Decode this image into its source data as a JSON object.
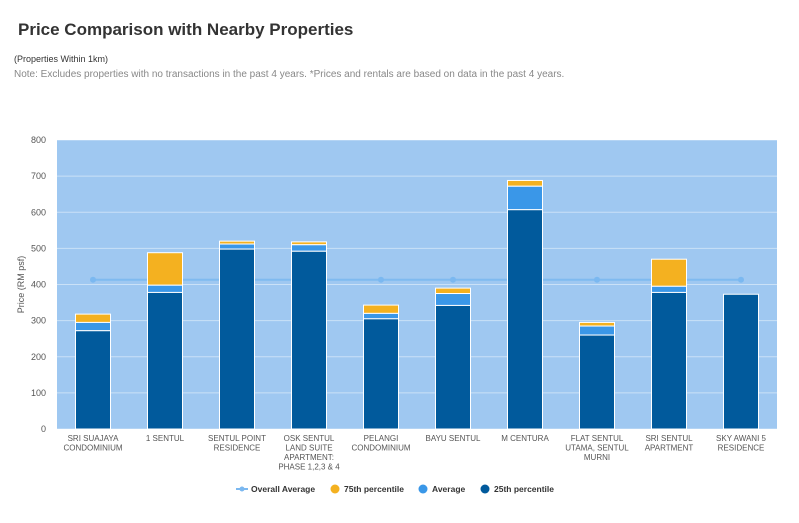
{
  "title": "Price Comparison with Nearby Properties",
  "subtitle": "(Properties Within 1km)",
  "note": "Note: Excludes properties with no transactions in the past 4 years. *Prices and rentals are based on data in the past 4 years.",
  "colors": {
    "plot_bg": "#9fc8f1",
    "p75": "#f4b120",
    "average": "#3a97e8",
    "p25": "#015a9c",
    "overall": "#7bb8f0"
  },
  "chart_data": {
    "type": "bar",
    "ylabel": "Price (RM psf)",
    "ylim": [
      0,
      800
    ],
    "yticks": [
      0,
      100,
      200,
      300,
      400,
      500,
      600,
      700,
      800
    ],
    "grid": true,
    "legend_position": "bottom",
    "categories": [
      [
        "SRI SUAJAYA",
        "CONDOMINIUM"
      ],
      [
        "1 SENTUL"
      ],
      [
        "SENTUL POINT",
        "RESIDENCE"
      ],
      [
        "OSK SENTUL",
        "LAND SUITE",
        "APARTMENT:",
        "PHASE 1,2,3 & 4"
      ],
      [
        "PELANGI",
        "CONDOMINIUM"
      ],
      [
        "BAYU SENTUL"
      ],
      [
        "M CENTURA"
      ],
      [
        "FLAT SENTUL",
        "UTAMA, SENTUL",
        "MURNI"
      ],
      [
        "SRI SENTUL",
        "APARTMENT"
      ],
      [
        "SKY AWANI 5",
        "RESIDENCE"
      ]
    ],
    "series": [
      {
        "name": "75th percentile",
        "values": [
          318,
          488,
          520,
          518,
          343,
          390,
          688,
          295,
          470,
          373
        ]
      },
      {
        "name": "Average",
        "values": [
          295,
          398,
          512,
          510,
          320,
          375,
          672,
          285,
          395,
          373
        ]
      },
      {
        "name": "25th percentile",
        "values": [
          272,
          378,
          498,
          492,
          305,
          342,
          607,
          260,
          378,
          373
        ]
      }
    ],
    "overall_average": {
      "name": "Overall Average",
      "value": 413
    },
    "legend": [
      "Overall Average",
      "75th percentile",
      "Average",
      "25th percentile"
    ]
  }
}
